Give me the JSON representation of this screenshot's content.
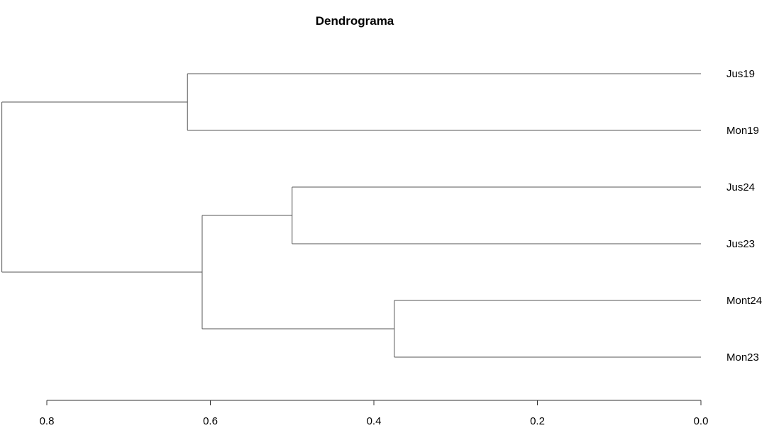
{
  "chart_data": {
    "type": "dendrogram",
    "title": "Dendrograma",
    "xlabel": "",
    "ylabel": "",
    "orientation": "horizontal",
    "axis": {
      "xlim": [
        0.8,
        0.0
      ],
      "ticks": [
        0.8,
        0.6,
        0.4,
        0.2,
        0.0
      ],
      "tick_labels": [
        "0.8",
        "0.6",
        "0.4",
        "0.2",
        "0.0"
      ]
    },
    "leaves": [
      "Jus19",
      "Mon19",
      "Jus24",
      "Jus23",
      "Mont24",
      "Mon23"
    ],
    "merges": [
      {
        "id": "m1",
        "left": "Mont24",
        "right": "Mon23",
        "height": 0.375
      },
      {
        "id": "m2",
        "left": "Jus24",
        "right": "Jus23",
        "height": 0.5
      },
      {
        "id": "m3",
        "left": "m2",
        "right": "m1",
        "height": 0.61
      },
      {
        "id": "m4",
        "left": "Jus19",
        "right": "Mon19",
        "height": 0.628
      },
      {
        "id": "m5",
        "left": "m4",
        "right": "m3",
        "height": 0.855
      }
    ],
    "grid": false,
    "colors": {
      "branch": "#555555",
      "text": "#000000"
    }
  }
}
